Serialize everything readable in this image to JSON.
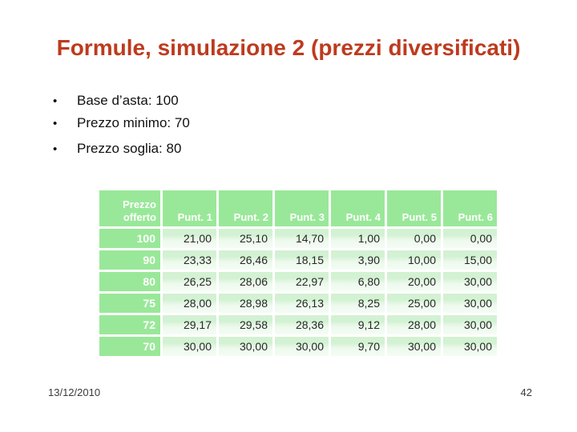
{
  "slide": {
    "title": "Formule, simulazione 2 (prezzi diversificati)",
    "bullets": [
      "Base d’asta: 100",
      "Prezzo minimo: 70",
      "Prezzo soglia: 80"
    ],
    "bullet_glyph": "•",
    "footer_date": "13/12/2010",
    "page_number": "42"
  },
  "table": {
    "headers": [
      "Prezzo offerto",
      "Punt. 1",
      "Punt. 2",
      "Punt. 3",
      "Punt. 4",
      "Punt. 5",
      "Punt. 6"
    ],
    "rows": [
      {
        "prezzo_offerto": "100",
        "values": [
          "21,00",
          "25,10",
          "14,70",
          "1,00",
          "0,00",
          "0,00"
        ]
      },
      {
        "prezzo_offerto": "90",
        "values": [
          "23,33",
          "26,46",
          "18,15",
          "3,90",
          "10,00",
          "15,00"
        ]
      },
      {
        "prezzo_offerto": "80",
        "values": [
          "26,25",
          "28,06",
          "22,97",
          "6,80",
          "20,00",
          "30,00"
        ]
      },
      {
        "prezzo_offerto": "75",
        "values": [
          "28,00",
          "28,98",
          "26,13",
          "8,25",
          "25,00",
          "30,00"
        ]
      },
      {
        "prezzo_offerto": "72",
        "values": [
          "29,17",
          "29,58",
          "28,36",
          "9,12",
          "28,00",
          "30,00"
        ]
      },
      {
        "prezzo_offerto": "70",
        "values": [
          "30,00",
          "30,00",
          "30,00",
          "9,70",
          "30,00",
          "30,00"
        ]
      }
    ]
  },
  "colors": {
    "title_text": "#bd3b1e",
    "table_header_green": "#99e899",
    "table_cell_light_green": "#e4f7e4",
    "body_text": "#111111"
  }
}
